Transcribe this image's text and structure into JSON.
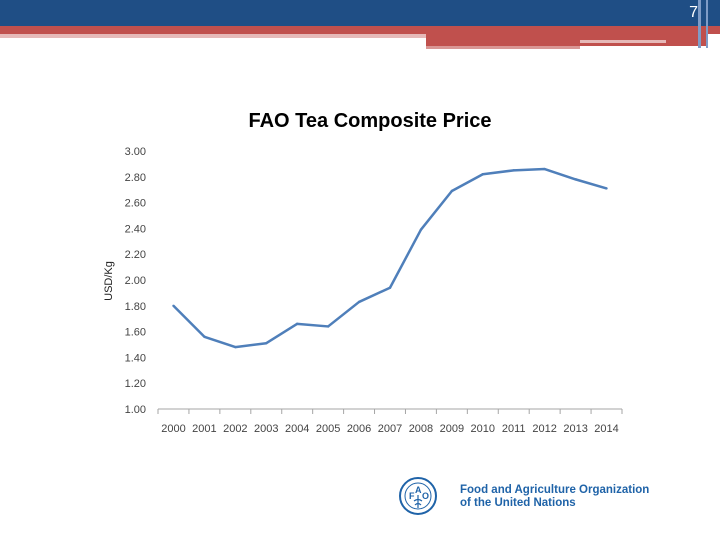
{
  "slide": {
    "number": "7"
  },
  "colors": {
    "header": "#1f4e85",
    "accent_red": "#c0504d",
    "series": "#4f7fba",
    "logo": "#1f63a8"
  },
  "logo": {
    "line1": "Food and Agriculture Organization",
    "line2": "of the United Nations",
    "icon": "fao-emblem-icon"
  },
  "chart_data": {
    "type": "line",
    "title": "FAO Tea Composite Price",
    "xlabel": "",
    "ylabel": "USD/Kg",
    "categories": [
      "2000",
      "2001",
      "2002",
      "2003",
      "2004",
      "2005",
      "2006",
      "2007",
      "2008",
      "2009",
      "2010",
      "2011",
      "2012",
      "2013",
      "2014"
    ],
    "series": [
      {
        "name": "FAO Tea Composite Price",
        "values": [
          1.8,
          1.56,
          1.48,
          1.51,
          1.66,
          1.64,
          1.83,
          1.94,
          2.39,
          2.69,
          2.82,
          2.85,
          2.86,
          2.78,
          2.71
        ]
      }
    ],
    "ylim": [
      1.0,
      3.0
    ],
    "yticks": [
      "1.00",
      "1.20",
      "1.40",
      "1.60",
      "1.80",
      "2.00",
      "2.20",
      "2.40",
      "2.60",
      "2.80",
      "3.00"
    ],
    "grid": false,
    "legend": "none"
  }
}
